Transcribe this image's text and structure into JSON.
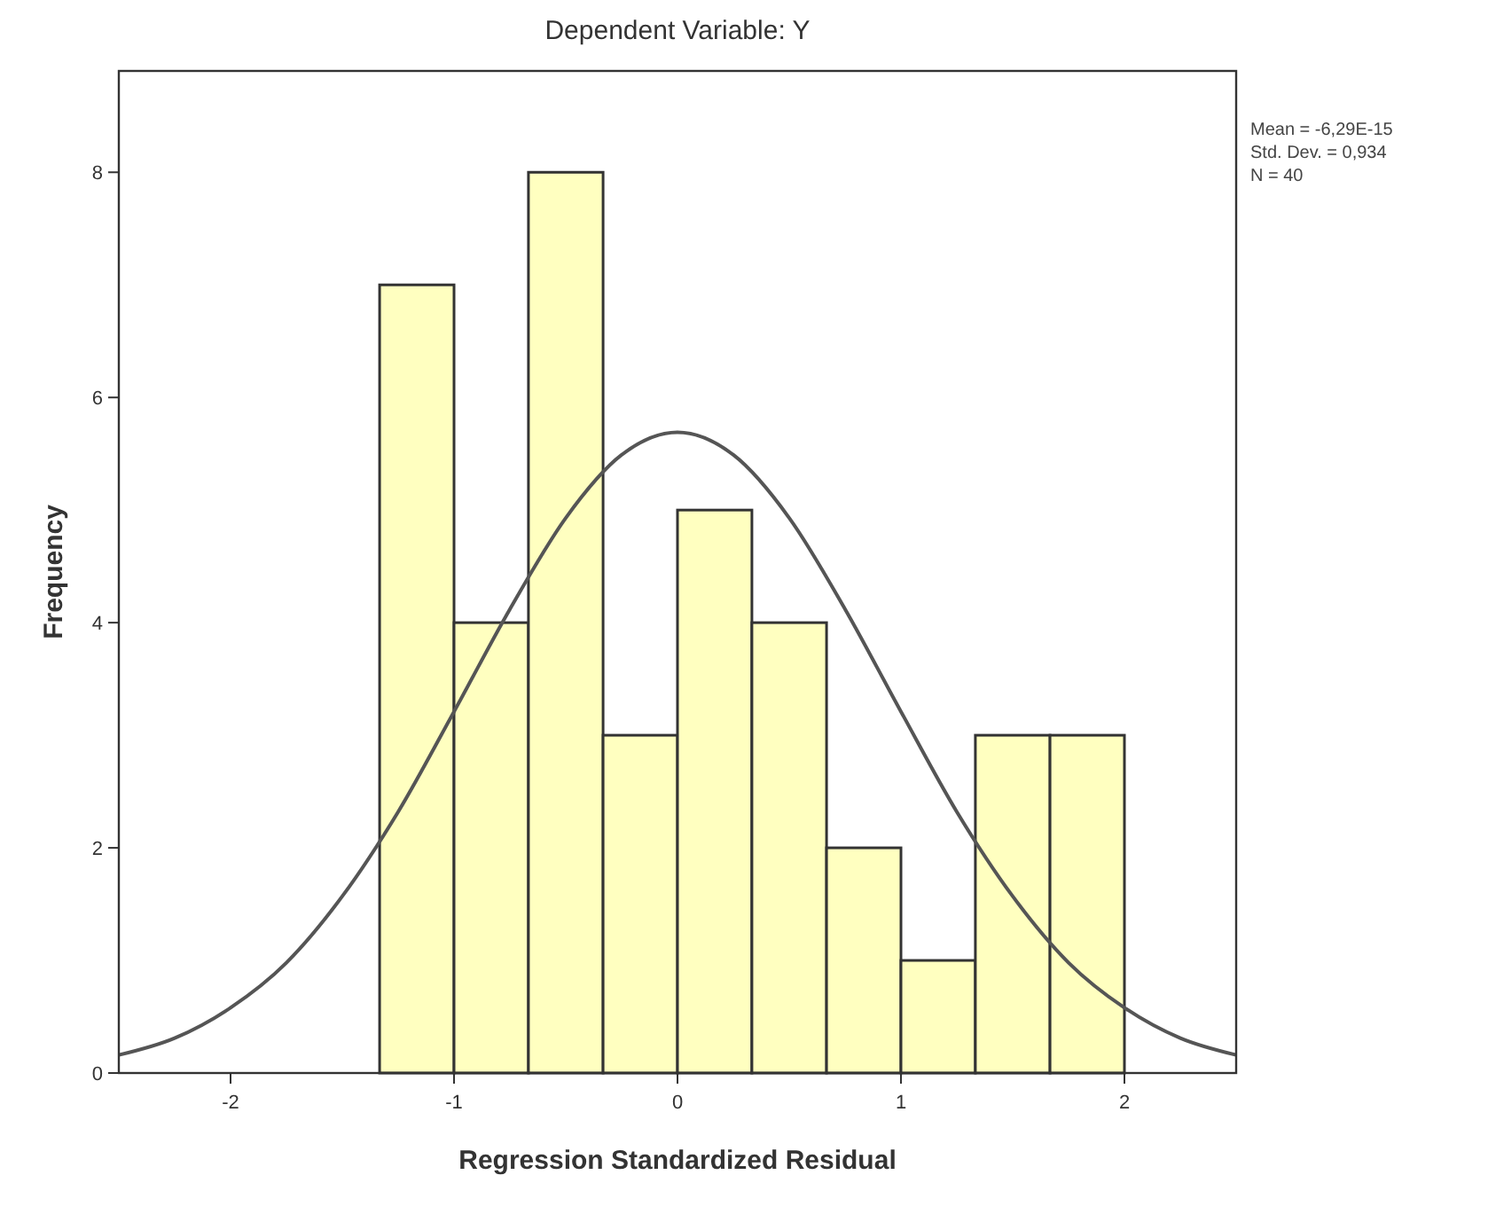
{
  "chart_data": {
    "type": "histogram",
    "title": "Dependent Variable: Y",
    "xlabel": "Regression Standardized Residual",
    "ylabel": "Frequency",
    "bins": [
      -1.333,
      -1,
      -0.667,
      -0.333,
      0,
      0.333,
      0.667,
      1,
      1.333,
      1.667,
      2
    ],
    "values": [
      7,
      4,
      8,
      3,
      5,
      4,
      2,
      1,
      3,
      3
    ],
    "color": "#ffffc0",
    "series": [
      {
        "type": "line",
        "color": "#555555",
        "x": [
          -2.5,
          -2.25,
          -2,
          -1.75,
          -1.5,
          -1.25,
          -1,
          -0.75,
          -0.5,
          -0.25,
          0,
          0.25,
          0.5,
          0.75,
          1,
          1.25,
          1.5,
          1.75,
          2,
          2.25,
          2.5
        ],
        "values": [
          0.16,
          0.31,
          0.58,
          0.98,
          1.57,
          2.32,
          3.21,
          4.12,
          4.93,
          5.49,
          5.69,
          5.49,
          4.93,
          4.12,
          3.21,
          2.32,
          1.57,
          0.98,
          0.58,
          0.31,
          0.16
        ]
      }
    ],
    "xlim": [
      -2.5,
      2.5
    ],
    "ylim": [
      0,
      8.9
    ],
    "xticks": [
      -2,
      -1,
      0,
      1,
      2
    ],
    "yticks": [
      0,
      2,
      4,
      6,
      8
    ],
    "grid": false,
    "annotations": [
      "Mean = -6,29E-15",
      "Std. Dev. = 0,934",
      "N = 40"
    ]
  }
}
